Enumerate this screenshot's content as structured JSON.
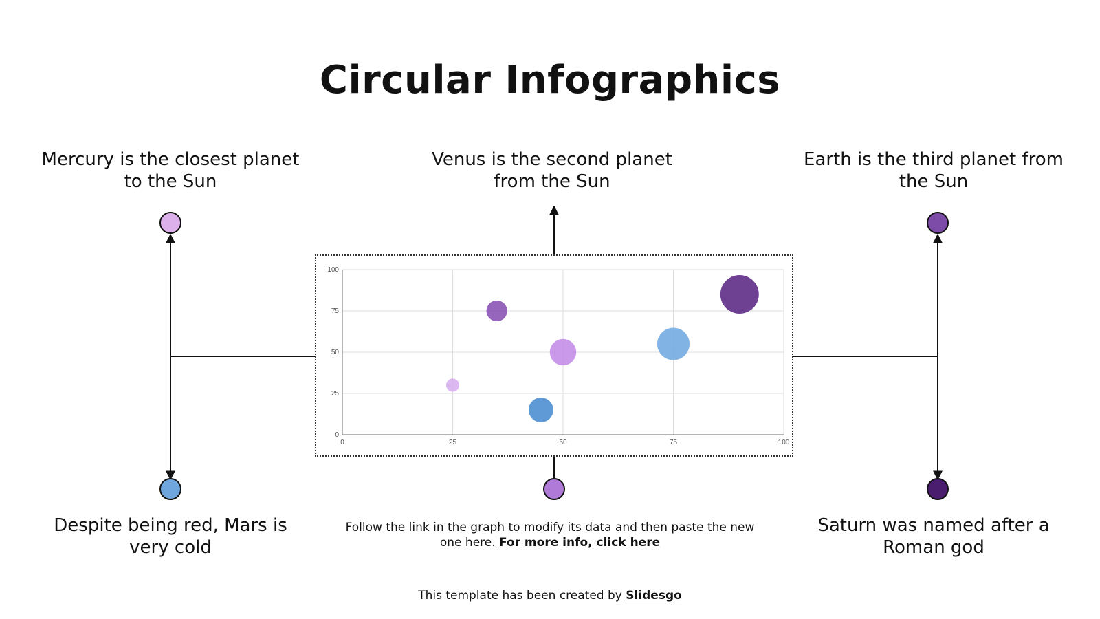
{
  "title": "Circular Infographics",
  "captions": {
    "mercury": "Mercury is the closest planet to the Sun",
    "venus": "Venus is the second planet from the Sun",
    "earth": "Earth is the third planet from the Sun",
    "mars": "Despite being red, Mars is very cold",
    "saturn": "Saturn was named after a Roman god"
  },
  "note": {
    "text": "Follow the link in the graph to modify its data and then paste the new one here.",
    "link": "For more info, click here"
  },
  "credit": {
    "text": "This template has been created by",
    "link": "Slidesgo"
  },
  "colors": {
    "mercury": "#dcb0ea",
    "mars": "#6fa6de",
    "venus": "#b07ad8",
    "earth": "#7d4ba8",
    "saturn": "#4a1d6e"
  },
  "chart_data": {
    "type": "bubble",
    "xlim": [
      0,
      100
    ],
    "ylim": [
      0,
      100
    ],
    "xticks": [
      0,
      25,
      50,
      75,
      100
    ],
    "yticks": [
      0,
      25,
      50,
      75,
      100
    ],
    "grid": true,
    "points": [
      {
        "x": 25,
        "y": 30,
        "size": 1,
        "color": "#d8b0ee"
      },
      {
        "x": 35,
        "y": 75,
        "size": 2.5,
        "color": "#8a55b5"
      },
      {
        "x": 45,
        "y": 15,
        "size": 3.5,
        "color": "#4e8fd3"
      },
      {
        "x": 50,
        "y": 50,
        "size": 4,
        "color": "#c48ee8"
      },
      {
        "x": 75,
        "y": 55,
        "size": 6,
        "color": "#74abe2"
      },
      {
        "x": 90,
        "y": 85,
        "size": 8.5,
        "color": "#5e2c86"
      }
    ]
  }
}
